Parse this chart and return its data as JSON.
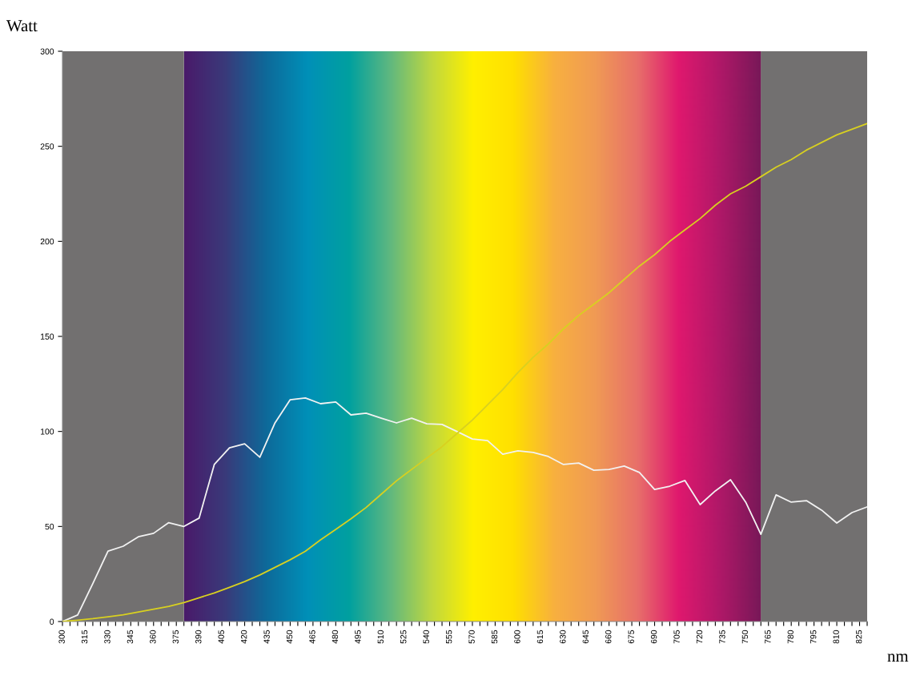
{
  "chart_data": {
    "type": "line",
    "xlabel": "nm",
    "ylabel": "Watt",
    "x": [
      300,
      310,
      320,
      330,
      340,
      350,
      360,
      370,
      380,
      390,
      400,
      410,
      420,
      430,
      440,
      450,
      460,
      470,
      480,
      490,
      500,
      510,
      520,
      530,
      540,
      550,
      560,
      570,
      580,
      590,
      600,
      610,
      620,
      630,
      640,
      650,
      660,
      670,
      680,
      690,
      700,
      710,
      720,
      730,
      740,
      750,
      760,
      770,
      780,
      790,
      800,
      810,
      820,
      830
    ],
    "series": [
      {
        "color": "#f2f2f2",
        "values": [
          0,
          3.4,
          20,
          37,
          39.6,
          44.6,
          46.4,
          52,
          50,
          54.4,
          82.6,
          91.4,
          93.5,
          86.4,
          104.5,
          116.7,
          117.6,
          114.6,
          115.5,
          108.7,
          109.6,
          107,
          104.5,
          107,
          104,
          103.7,
          99.9,
          96,
          95.2,
          88,
          89.8,
          89,
          86.8,
          82.6,
          83.4,
          79.6,
          80,
          81.8,
          78.4,
          69.5,
          71.2,
          74.2,
          61.5,
          68.7,
          74.6,
          62.8,
          45.9,
          66.6,
          62.8,
          63.6,
          58.6,
          51.8,
          57.3,
          60.3
        ]
      },
      {
        "color": "#d8d020",
        "values": [
          0,
          0.7,
          1.5,
          2.5,
          3.5,
          5,
          6.5,
          8,
          10,
          12.5,
          15,
          18,
          21,
          24.5,
          28.5,
          32.5,
          37,
          43,
          48.5,
          54,
          60,
          67,
          74,
          80,
          86,
          92,
          99,
          106,
          114,
          122,
          131,
          139,
          146,
          154,
          161,
          167,
          173,
          180,
          187,
          193,
          200,
          206,
          212,
          219,
          225,
          229,
          234,
          239,
          243,
          248,
          252,
          256,
          259,
          262
        ]
      }
    ],
    "bands": [
      {
        "axis": "x",
        "from": 300,
        "to": 380,
        "color": "#727070"
      },
      {
        "axis": "x",
        "from": 380,
        "to": 760
      },
      {
        "axis": "x",
        "from": 760,
        "to": 830,
        "color": "#727070"
      }
    ],
    "xlim": [
      300,
      830
    ],
    "ylim": [
      0,
      300
    ],
    "yticks": [
      0,
      50,
      100,
      150,
      200,
      250,
      300
    ],
    "xticks": [
      300,
      {
        "value": 305,
        "label": null
      },
      {
        "value": 310,
        "label": null
      },
      315,
      {
        "value": 320,
        "label": null
      },
      {
        "value": 325,
        "label": null
      },
      330,
      {
        "value": 335,
        "label": null
      },
      {
        "value": 340,
        "label": null
      },
      345,
      {
        "value": 350,
        "label": null
      },
      {
        "value": 355,
        "label": null
      },
      360,
      {
        "value": 365,
        "label": null
      },
      {
        "value": 370,
        "label": null
      },
      375,
      {
        "value": 380,
        "label": null
      },
      {
        "value": 385,
        "label": null
      },
      390,
      {
        "value": 395,
        "label": null
      },
      {
        "value": 400,
        "label": null
      },
      405,
      {
        "value": 410,
        "label": null
      },
      {
        "value": 415,
        "label": null
      },
      420,
      {
        "value": 425,
        "label": null
      },
      {
        "value": 430,
        "label": null
      },
      435,
      {
        "value": 440,
        "label": null
      },
      {
        "value": 445,
        "label": null
      },
      450,
      {
        "value": 455,
        "label": null
      },
      {
        "value": 460,
        "label": null
      },
      465,
      {
        "value": 470,
        "label": null
      },
      {
        "value": 475,
        "label": null
      },
      480,
      {
        "value": 485,
        "label": null
      },
      {
        "value": 490,
        "label": null
      },
      495,
      {
        "value": 500,
        "label": null
      },
      {
        "value": 505,
        "label": null
      },
      510,
      {
        "value": 515,
        "label": null
      },
      {
        "value": 520,
        "label": null
      },
      525,
      {
        "value": 530,
        "label": null
      },
      {
        "value": 535,
        "label": null
      },
      540,
      {
        "value": 545,
        "label": null
      },
      {
        "value": 550,
        "label": null
      },
      555,
      {
        "value": 560,
        "label": null
      },
      {
        "value": 565,
        "label": null
      },
      570,
      {
        "value": 575,
        "label": null
      },
      {
        "value": 580,
        "label": null
      },
      585,
      {
        "value": 590,
        "label": null
      },
      {
        "value": 595,
        "label": null
      },
      600,
      {
        "value": 605,
        "label": null
      },
      {
        "value": 610,
        "label": null
      },
      615,
      {
        "value": 620,
        "label": null
      },
      {
        "value": 625,
        "label": null
      },
      630,
      {
        "value": 635,
        "label": null
      },
      {
        "value": 640,
        "label": null
      },
      645,
      {
        "value": 650,
        "label": null
      },
      {
        "value": 655,
        "label": null
      },
      660,
      {
        "value": 665,
        "label": null
      },
      {
        "value": 670,
        "label": null
      },
      675,
      {
        "value": 680,
        "label": null
      },
      {
        "value": 685,
        "label": null
      },
      690,
      {
        "value": 695,
        "label": null
      },
      {
        "value": 700,
        "label": null
      },
      705,
      {
        "value": 710,
        "label": null
      },
      {
        "value": 715,
        "label": null
      },
      720,
      {
        "value": 725,
        "label": null
      },
      {
        "value": 730,
        "label": null
      },
      735,
      {
        "value": 740,
        "label": null
      },
      {
        "value": 745,
        "label": null
      },
      750,
      {
        "value": 755,
        "label": null
      },
      {
        "value": 760,
        "label": null
      },
      765,
      {
        "value": 770,
        "label": null
      },
      {
        "value": 775,
        "label": null
      },
      780,
      {
        "value": 785,
        "label": null
      },
      {
        "value": 790,
        "label": null
      },
      795,
      {
        "value": 800,
        "label": null
      },
      {
        "value": 805,
        "label": null
      },
      810,
      {
        "value": 815,
        "label": null
      },
      {
        "value": 820,
        "label": null
      },
      825,
      {
        "value": 830,
        "label": null
      }
    ],
    "grid": false,
    "marker": "none",
    "line_style": "solid"
  }
}
